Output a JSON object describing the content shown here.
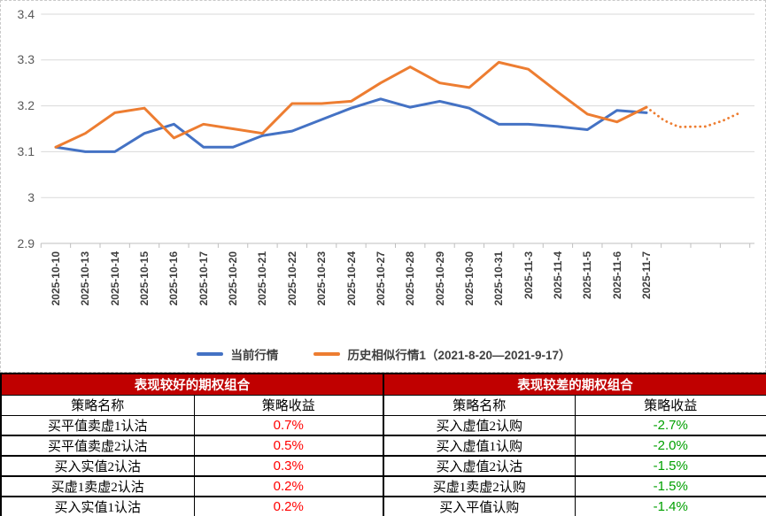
{
  "chart_data": {
    "type": "line",
    "title": "",
    "xlabel": "",
    "ylabel": "",
    "ylim": [
      2.9,
      3.4
    ],
    "y_tick_labels": [
      "2.9",
      "3",
      "3.1",
      "3.2",
      "3.3",
      "3.4"
    ],
    "y_tick_values": [
      2.9,
      3.0,
      3.1,
      3.2,
      3.3,
      3.4
    ],
    "grid": true,
    "legend_position": "bottom",
    "categories": [
      "2025-10-10",
      "2025-10-13",
      "2025-10-14",
      "2025-10-15",
      "2025-10-16",
      "2025-10-17",
      "2025-10-20",
      "2025-10-21",
      "2025-10-22",
      "2025-10-23",
      "2025-10-24",
      "2025-10-27",
      "2025-10-28",
      "2025-10-29",
      "2025-10-30",
      "2025-10-31",
      "2025-11-3",
      "2025-11-4",
      "2025-11-5",
      "2025-11-6",
      "2025-11-7"
    ],
    "series": [
      {
        "name": "当前行情",
        "color": "#4472C4",
        "style": "solid",
        "values": [
          3.11,
          3.1,
          3.1,
          3.14,
          3.16,
          3.11,
          3.11,
          3.135,
          3.145,
          3.17,
          3.195,
          3.215,
          3.197,
          3.21,
          3.195,
          3.16,
          3.16,
          3.155,
          3.148,
          3.19,
          3.185
        ]
      },
      {
        "name": "历史相似行情1（2021-8-20—2021-9-17）",
        "color": "#ED7D31",
        "style": "solid",
        "values": [
          3.11,
          3.14,
          3.185,
          3.195,
          3.13,
          3.16,
          3.15,
          3.14,
          3.205,
          3.205,
          3.21,
          3.25,
          3.285,
          3.25,
          3.24,
          3.295,
          3.28,
          3.23,
          3.182,
          3.165,
          3.197
        ]
      }
    ],
    "dotted_extension": {
      "of": "历史相似行情1（2021-8-20—2021-9-17）",
      "color": "#ED7D31",
      "style": "dotted",
      "x_category_units": [
        20,
        20.6,
        21.1,
        22.0,
        22.6,
        23.1
      ],
      "values": [
        3.197,
        3.168,
        3.154,
        3.155,
        3.168,
        3.183
      ]
    }
  },
  "legend": [
    {
      "label": "当前行情",
      "color": "#4472C4"
    },
    {
      "label": "历史相似行情1（2021-8-20—2021-9-17）",
      "color": "#ED7D31"
    }
  ],
  "table": {
    "good": {
      "header": "表现较好的期权组合",
      "col_name": "策略名称",
      "col_value": "策略收益",
      "rows": [
        {
          "name": "买平值卖虚1认沽",
          "value": "0.7%"
        },
        {
          "name": "买平值卖虚2认沽",
          "value": "0.5%"
        },
        {
          "name": "买入实值2认沽",
          "value": "0.3%"
        },
        {
          "name": "买虚1卖虚2认沽",
          "value": "0.2%"
        },
        {
          "name": "买入实值1认沽",
          "value": "0.2%"
        }
      ]
    },
    "bad": {
      "header": "表现较差的期权组合",
      "col_name": "策略名称",
      "col_value": "策略收益",
      "rows": [
        {
          "name": "买入虚值2认购",
          "value": "-2.7%"
        },
        {
          "name": "买入虚值1认购",
          "value": "-2.0%"
        },
        {
          "name": "买入虚值2认沽",
          "value": "-1.5%"
        },
        {
          "name": "买虚1卖虚2认购",
          "value": "-1.5%"
        },
        {
          "name": "买入平值认购",
          "value": "-1.4%"
        }
      ]
    }
  },
  "colors": {
    "series_current": "#4472C4",
    "series_history": "#ED7D31",
    "gridline": "#D9D9D9",
    "axis": "#BFBFBF",
    "table_header_bg": "#C00000",
    "positive_value": "#FF0000",
    "negative_value": "#00A000"
  }
}
